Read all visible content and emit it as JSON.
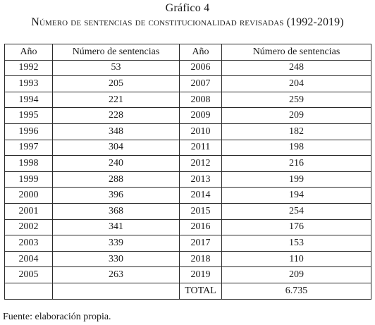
{
  "figure": {
    "label": "Gráfico 4",
    "title": "Número de sentencias de constitucionalidad revisadas (1992-2019)"
  },
  "table": {
    "headers": [
      "Año",
      "Número de sentencias",
      "Año",
      "Número de sentencias"
    ],
    "rows": [
      [
        "1992",
        "53",
        "2006",
        "248"
      ],
      [
        "1993",
        "205",
        "2007",
        "204"
      ],
      [
        "1994",
        "221",
        "2008",
        "259"
      ],
      [
        "1995",
        "228",
        "2009",
        "209"
      ],
      [
        "1996",
        "348",
        "2010",
        "182"
      ],
      [
        "1997",
        "304",
        "2011",
        "198"
      ],
      [
        "1998",
        "240",
        "2012",
        "216"
      ],
      [
        "1999",
        "288",
        "2013",
        "199"
      ],
      [
        "2000",
        "396",
        "2014",
        "194"
      ],
      [
        "2001",
        "368",
        "2015",
        "254"
      ],
      [
        "2002",
        "341",
        "2016",
        "176"
      ],
      [
        "2003",
        "339",
        "2017",
        "153"
      ],
      [
        "2004",
        "330",
        "2018",
        "110"
      ],
      [
        "2005",
        "263",
        "2019",
        "209"
      ],
      [
        "",
        "",
        "TOTAL",
        "6.735"
      ]
    ]
  },
  "source": "Fuente: elaboración propia."
}
